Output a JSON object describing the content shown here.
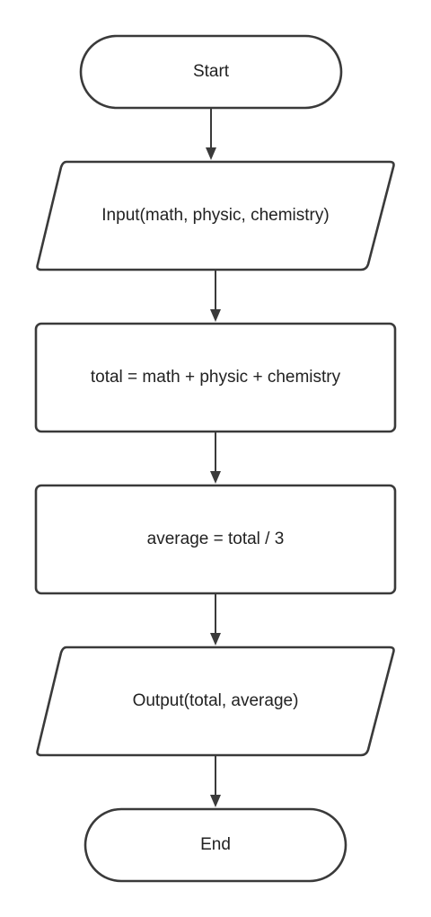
{
  "diagram": {
    "type": "flowchart",
    "colors": {
      "stroke": "#3a3a3a",
      "fill": "#ffffff",
      "text": "#222222"
    },
    "nodes": [
      {
        "id": "start",
        "shape": "terminator",
        "label": "Start"
      },
      {
        "id": "input",
        "shape": "parallelogram",
        "label": "Input(math, physic, chemistry)"
      },
      {
        "id": "sum",
        "shape": "process",
        "label": "total = math + physic + chemistry"
      },
      {
        "id": "avg",
        "shape": "process",
        "label": "average = total / 3"
      },
      {
        "id": "output",
        "shape": "parallelogram",
        "label": "Output(total, average)"
      },
      {
        "id": "end",
        "shape": "terminator",
        "label": "End"
      }
    ],
    "edges": [
      {
        "from": "start",
        "to": "input"
      },
      {
        "from": "input",
        "to": "sum"
      },
      {
        "from": "sum",
        "to": "avg"
      },
      {
        "from": "avg",
        "to": "output"
      },
      {
        "from": "output",
        "to": "end"
      }
    ]
  }
}
